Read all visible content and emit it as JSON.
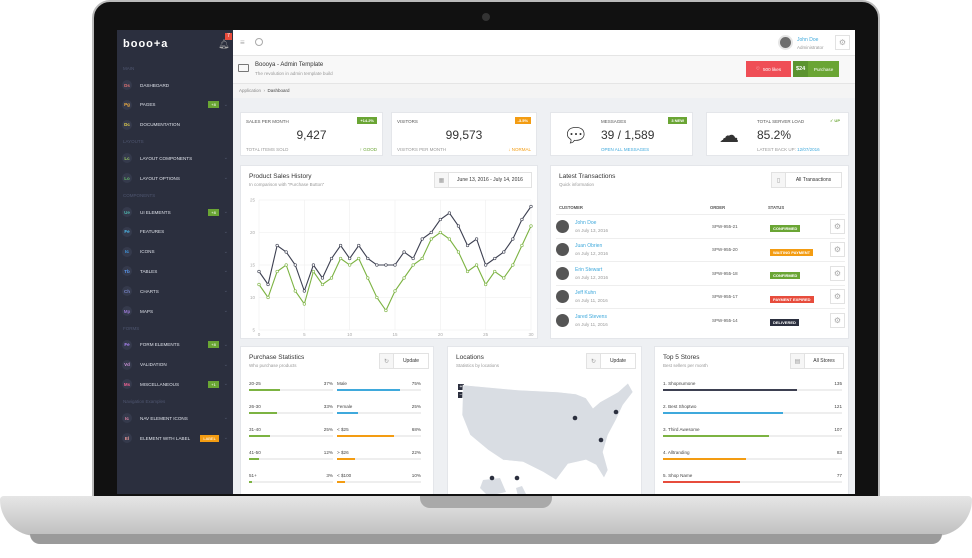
{
  "app": {
    "logo": "booo+a",
    "notification_count": "7"
  },
  "sidebar": {
    "sections": [
      {
        "title": "MAIN",
        "items": [
          {
            "icon": "Ds",
            "label": "DASHBOARD",
            "color": "#e57373"
          },
          {
            "icon": "Pg",
            "label": "PAGES",
            "color": "#f5b041",
            "badge": "+8",
            "badge_color": "#6aa534",
            "chevron": true
          },
          {
            "icon": "Dc",
            "label": "DOCUMENTATION",
            "color": "#e8d44d"
          }
        ]
      },
      {
        "title": "LAYOUTS",
        "items": [
          {
            "icon": "Lc",
            "label": "LAYOUT COMPONENTS",
            "color": "#9ccc65",
            "chevron": true
          },
          {
            "icon": "Lo",
            "label": "LAYOUT OPTIONS",
            "color": "#66bb6a",
            "chevron": true
          }
        ]
      },
      {
        "title": "COMPONENTS",
        "items": [
          {
            "icon": "Ue",
            "label": "UI ELEMENTS",
            "color": "#4db6ac",
            "badge": "+8",
            "badge_color": "#6aa534",
            "chevron": true
          },
          {
            "icon": "Fe",
            "label": "FEATURES",
            "color": "#4fc3f7",
            "chevron": true
          },
          {
            "icon": "Ic",
            "label": "ICONS",
            "color": "#42a5f5",
            "chevron": true
          },
          {
            "icon": "Tb",
            "label": "TABLES",
            "color": "#5c9cf5",
            "chevron": true
          },
          {
            "icon": "Ch",
            "label": "CHARTS",
            "color": "#7986cb",
            "chevron": true
          },
          {
            "icon": "Mp",
            "label": "MAPS",
            "color": "#9575cd",
            "chevron": true
          }
        ]
      },
      {
        "title": "FORMS",
        "items": [
          {
            "icon": "Fe",
            "label": "FORM ELEMENTS",
            "color": "#b388ff",
            "badge": "+8",
            "badge_color": "#6aa534",
            "chevron": true
          },
          {
            "icon": "Vd",
            "label": "VALIDATION",
            "color": "#ce93d8",
            "chevron": true
          },
          {
            "icon": "Ms",
            "label": "MISCELLANEOUS",
            "color": "#f06292",
            "badge": "+1",
            "badge_color": "#6aa534",
            "chevron": true
          }
        ]
      },
      {
        "title": "Navigation Examples",
        "items": [
          {
            "icon": "Ic",
            "label": "NAV ELEMENT ICONS",
            "color": "#f48fb1",
            "chevron": true
          },
          {
            "icon": "El",
            "label": "ELEMENT WITH LABEL",
            "color": "#ef9a9a",
            "badge": "LABEL",
            "badge_color": "#f39c12",
            "chevron": true
          }
        ]
      }
    ]
  },
  "header": {
    "user_name": "John Doe",
    "user_role": "Administrator"
  },
  "titlebar": {
    "title": "Boooya - Admin Template",
    "subtitle": "The revolution in admin template build",
    "likes": "500 likes",
    "price": "$24",
    "purchase": "Purchase"
  },
  "breadcrumb": [
    "Application",
    "Dashboard"
  ],
  "stats": [
    {
      "label": "SALES PER MONTH",
      "badge": "+14.2%",
      "badge_color": "#6aa534",
      "value": "9,427",
      "foot": "TOTAL ITEMS SOLD",
      "status": "↑ GOOD",
      "status_color": "#6aa534"
    },
    {
      "label": "VISITORS",
      "badge": "-3.5%",
      "badge_color": "#f39c12",
      "value": "99,573",
      "foot": "VISITORS PER MONTH",
      "status": "↓ NORMAL",
      "status_color": "#f39c12"
    },
    {
      "label": "MESSAGES",
      "badge": "3 NEW",
      "badge_color": "#6aa534",
      "value": "39 / 1,589",
      "link": "OPEN ALL MESSAGES",
      "icon": "chat-bubble-icon"
    },
    {
      "label": "TOTAL SERVER LOAD",
      "badge": "✓ UP",
      "value": "85.2%",
      "foot": "LATEST BACK UP:",
      "date": "12/07/2016",
      "icon": "cloud-check-icon"
    }
  ],
  "chart_data": {
    "type": "line",
    "title": "Product Sales History",
    "subtitle": "In comparison with \"Purchase Button\"",
    "date_range": "June 13, 2016 - July 14, 2016",
    "x": [
      0,
      1,
      2,
      3,
      4,
      5,
      6,
      7,
      8,
      9,
      10,
      11,
      12,
      13,
      14,
      15,
      16,
      17,
      18,
      19,
      20,
      21,
      22,
      23,
      24,
      25,
      26,
      27,
      28,
      29,
      30
    ],
    "xticks": [
      "0",
      "5",
      "10",
      "15",
      "20",
      "25",
      "30"
    ],
    "yticks": [
      "5",
      "10",
      "15",
      "20",
      "25"
    ],
    "ylim": [
      5,
      25
    ],
    "xlim": [
      0,
      30
    ],
    "grid": true,
    "series": [
      {
        "color": "#3d4051",
        "values": [
          14,
          12,
          18,
          17,
          15,
          11,
          15,
          13,
          16,
          18,
          16,
          18,
          16,
          15,
          15,
          15,
          17,
          16,
          19,
          20,
          22,
          23,
          21,
          18,
          19,
          15,
          16,
          17,
          19,
          22,
          24
        ]
      },
      {
        "color": "#7cb342",
        "values": [
          12,
          10,
          14,
          15,
          11,
          9,
          14,
          12,
          13,
          16,
          15,
          16,
          13,
          10,
          8,
          11,
          13,
          15,
          16,
          19,
          20,
          19,
          17,
          14,
          15,
          12,
          14,
          13,
          15,
          18,
          21
        ]
      }
    ]
  },
  "transactions": {
    "title": "Latest Transactions",
    "subtitle": "Quick information",
    "button": "All Transactions",
    "columns": [
      "CUSTOMER",
      "ORDER",
      "STATUS"
    ],
    "rows": [
      {
        "name": "John Doe",
        "date": "on July 13, 2016",
        "order": "SPW-955-21",
        "status": "CONFIRMED",
        "color": "#6aa534"
      },
      {
        "name": "Juan Obrien",
        "date": "on July 12, 2016",
        "order": "SPW-955-20",
        "status": "WAITING PAYMENT",
        "color": "#f39c12"
      },
      {
        "name": "Erin Stewart",
        "date": "on July 12, 2016",
        "order": "SPW-955-18",
        "status": "CONFIRMED",
        "color": "#6aa534"
      },
      {
        "name": "Jeff Kuhn",
        "date": "on July 11, 2016",
        "order": "SPW-955-17",
        "status": "PAYMENT EXPIRED",
        "color": "#e74c3c"
      },
      {
        "name": "Jared Stevens",
        "date": "on July 11, 2016",
        "order": "SPW-955-14",
        "status": "DELIVERED",
        "color": "#2b2f3e"
      }
    ]
  },
  "purchase": {
    "title": "Purchase Statistics",
    "subtitle": "Who purchase products",
    "button": "Update",
    "left": [
      {
        "label": "20-25",
        "value": "37%",
        "pct": 37
      },
      {
        "label": "26-30",
        "value": "33%",
        "pct": 33
      },
      {
        "label": "31-40",
        "value": "25%",
        "pct": 25
      },
      {
        "label": "41-50",
        "value": "12%",
        "pct": 12
      },
      {
        "label": "51+",
        "value": "3%",
        "pct": 3
      }
    ],
    "right": [
      {
        "label": "Male",
        "value": "75%",
        "pct": 75,
        "color": "#3fa9dc"
      },
      {
        "label": "Female",
        "value": "25%",
        "pct": 25,
        "color": "#3fa9dc"
      },
      {
        "label": "< $25",
        "value": "68%",
        "pct": 68,
        "color": "#f39c12"
      },
      {
        "label": "> $26",
        "value": "22%",
        "pct": 22,
        "color": "#f39c12"
      },
      {
        "label": "< $100",
        "value": "10%",
        "pct": 10,
        "color": "#f39c12"
      }
    ]
  },
  "locations": {
    "title": "Locations",
    "subtitle": "Statistics by locations",
    "button": "Update",
    "zoom_in": "+",
    "zoom_out": "−"
  },
  "stores": {
    "title": "Top 5 Stores",
    "subtitle": "Best sellers per month",
    "button": "All Stores",
    "items": [
      {
        "label": "1. Shopnumone",
        "value": 135,
        "color": "#3d4051"
      },
      {
        "label": "2. Best Shoptwo",
        "value": 121,
        "color": "#3fa9dc"
      },
      {
        "label": "3. Third Awesome",
        "value": 107,
        "color": "#7cb342"
      },
      {
        "label": "4. Alltranding",
        "value": 83,
        "color": "#f39c12"
      },
      {
        "label": "5. Shop Name",
        "value": 77,
        "color": "#e74c3c"
      }
    ]
  }
}
